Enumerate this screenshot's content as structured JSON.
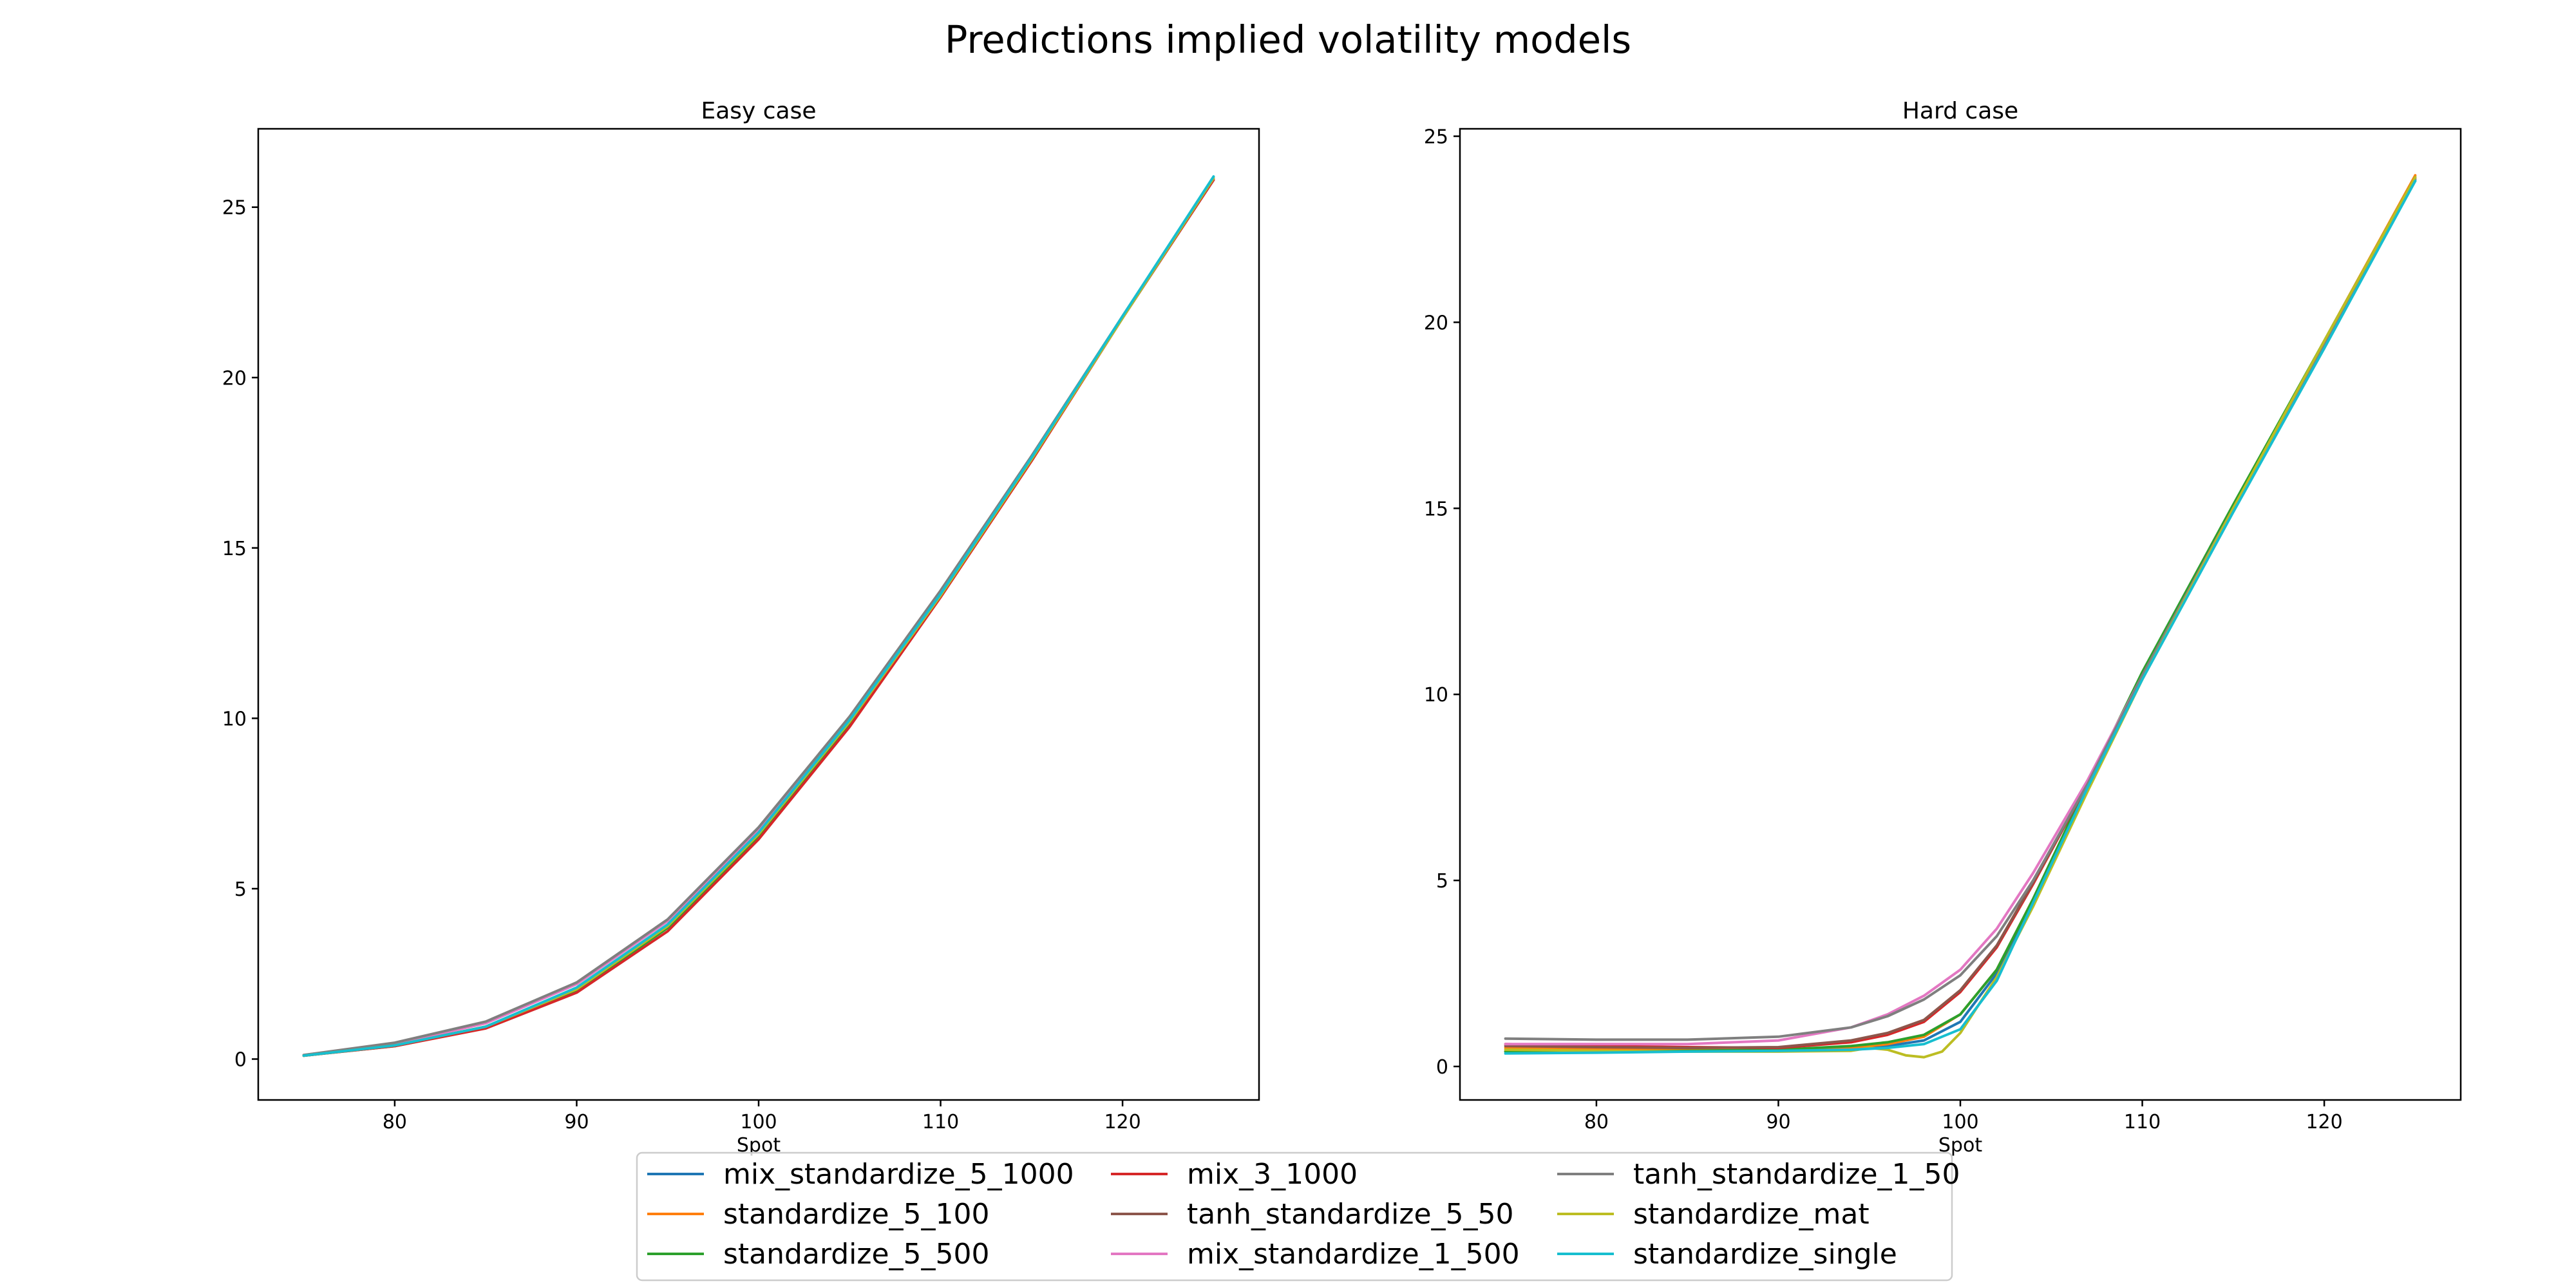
{
  "figure": {
    "suptitle": "Predictions implied volatility models"
  },
  "chart_data": [
    {
      "type": "line",
      "title": "Easy case",
      "xlabel": "Spot",
      "ylabel": "",
      "xlim": [
        72.5,
        127.5
      ],
      "ylim": [
        -1.2,
        27.3
      ],
      "xticks": [
        80,
        90,
        100,
        110,
        120
      ],
      "yticks": [
        0,
        5,
        10,
        15,
        20,
        25
      ],
      "grid": false,
      "series": [
        {
          "name": "mix_standardize_5_1000",
          "color": "#1f77b4",
          "x": [
            75,
            80,
            85,
            90,
            95,
            100,
            105,
            110,
            115,
            120,
            125
          ],
          "y": [
            0.1,
            0.4,
            0.95,
            2.05,
            3.9,
            6.6,
            9.9,
            13.6,
            17.6,
            21.75,
            25.8
          ]
        },
        {
          "name": "standardize_5_100",
          "color": "#ff7f0e",
          "x": [
            75,
            80,
            85,
            90,
            95,
            100,
            105,
            110,
            115,
            120,
            125
          ],
          "y": [
            0.1,
            0.4,
            0.95,
            2.05,
            3.85,
            6.55,
            9.85,
            13.6,
            17.6,
            21.75,
            25.85
          ]
        },
        {
          "name": "standardize_5_500",
          "color": "#2ca02c",
          "x": [
            75,
            80,
            85,
            90,
            95,
            100,
            105,
            110,
            115,
            120,
            125
          ],
          "y": [
            0.1,
            0.38,
            0.92,
            2.0,
            3.85,
            6.55,
            9.85,
            13.6,
            17.6,
            21.75,
            25.85
          ]
        },
        {
          "name": "mix_3_1000",
          "color": "#d62728",
          "x": [
            75,
            80,
            85,
            90,
            95,
            100,
            105,
            110,
            115,
            120,
            125
          ],
          "y": [
            0.1,
            0.38,
            0.9,
            1.95,
            3.75,
            6.45,
            9.75,
            13.55,
            17.55,
            21.75,
            25.8
          ]
        },
        {
          "name": "tanh_standardize_5_50",
          "color": "#8c564b",
          "x": [
            75,
            80,
            85,
            90,
            95,
            100,
            105,
            110,
            115,
            120,
            125
          ],
          "y": [
            0.1,
            0.4,
            0.95,
            2.05,
            3.9,
            6.6,
            9.9,
            13.65,
            17.6,
            21.75,
            25.85
          ]
        },
        {
          "name": "mix_standardize_1_500",
          "color": "#e377c2",
          "x": [
            75,
            80,
            85,
            90,
            95,
            100,
            105,
            110,
            115,
            120,
            125
          ],
          "y": [
            0.12,
            0.45,
            1.05,
            2.2,
            4.05,
            6.75,
            10.0,
            13.7,
            17.65,
            21.8,
            25.85
          ]
        },
        {
          "name": "tanh_standardize_1_50",
          "color": "#7f7f7f",
          "x": [
            75,
            80,
            85,
            90,
            95,
            100,
            105,
            110,
            115,
            120,
            125
          ],
          "y": [
            0.12,
            0.48,
            1.1,
            2.25,
            4.1,
            6.8,
            10.05,
            13.75,
            17.7,
            21.8,
            25.85
          ]
        },
        {
          "name": "standardize_mat",
          "color": "#bcbd22",
          "x": [
            75,
            80,
            85,
            90,
            95,
            100,
            105,
            110,
            115,
            120,
            125
          ],
          "y": [
            0.1,
            0.4,
            0.95,
            2.05,
            3.9,
            6.6,
            9.9,
            13.6,
            17.6,
            21.75,
            25.85
          ]
        },
        {
          "name": "standardize_single",
          "color": "#17becf",
          "x": [
            75,
            80,
            85,
            90,
            95,
            100,
            105,
            110,
            115,
            120,
            125
          ],
          "y": [
            0.1,
            0.4,
            0.95,
            2.1,
            3.95,
            6.65,
            9.95,
            13.65,
            17.65,
            21.8,
            25.9
          ]
        }
      ]
    },
    {
      "type": "line",
      "title": "Hard case",
      "xlabel": "Spot",
      "ylabel": "",
      "xlim": [
        72.5,
        127.5
      ],
      "ylim": [
        -0.9,
        25.2
      ],
      "xticks": [
        80,
        90,
        100,
        110,
        120
      ],
      "yticks": [
        0,
        5,
        10,
        15,
        20,
        25
      ],
      "grid": false,
      "series": [
        {
          "name": "mix_standardize_5_1000",
          "color": "#1f77b4",
          "x": [
            75,
            80,
            85,
            90,
            94,
            96,
            98,
            100,
            102,
            104,
            107,
            110,
            115,
            120,
            125
          ],
          "y": [
            0.4,
            0.42,
            0.43,
            0.45,
            0.5,
            0.55,
            0.7,
            1.2,
            2.5,
            4.5,
            7.6,
            10.5,
            15.0,
            19.4,
            23.8
          ]
        },
        {
          "name": "standardize_5_100",
          "color": "#ff7f0e",
          "x": [
            75,
            80,
            85,
            90,
            94,
            96,
            98,
            100,
            102,
            104,
            107,
            110,
            115,
            120,
            125
          ],
          "y": [
            0.5,
            0.48,
            0.45,
            0.45,
            0.5,
            0.6,
            0.8,
            1.4,
            2.6,
            4.5,
            7.5,
            10.5,
            15.0,
            19.5,
            23.95
          ]
        },
        {
          "name": "standardize_5_500",
          "color": "#2ca02c",
          "x": [
            75,
            80,
            85,
            90,
            94,
            96,
            98,
            100,
            102,
            104,
            107,
            110,
            115,
            120,
            125
          ],
          "y": [
            0.4,
            0.4,
            0.42,
            0.45,
            0.55,
            0.65,
            0.85,
            1.4,
            2.6,
            4.5,
            7.6,
            10.6,
            15.1,
            19.5,
            23.9
          ]
        },
        {
          "name": "mix_3_1000",
          "color": "#d62728",
          "x": [
            75,
            80,
            85,
            90,
            94,
            96,
            98,
            100,
            102,
            104,
            107,
            110,
            115,
            120,
            125
          ],
          "y": [
            0.6,
            0.55,
            0.52,
            0.5,
            0.65,
            0.85,
            1.2,
            2.0,
            3.2,
            4.9,
            7.6,
            10.5,
            15.0,
            19.4,
            23.9
          ]
        },
        {
          "name": "tanh_standardize_5_50",
          "color": "#8c564b",
          "x": [
            75,
            80,
            85,
            90,
            94,
            96,
            98,
            100,
            102,
            104,
            107,
            110,
            115,
            120,
            125
          ],
          "y": [
            0.55,
            0.52,
            0.5,
            0.52,
            0.7,
            0.9,
            1.25,
            2.05,
            3.25,
            4.95,
            7.6,
            10.5,
            15.0,
            19.4,
            23.85
          ]
        },
        {
          "name": "mix_standardize_1_500",
          "color": "#e377c2",
          "x": [
            75,
            80,
            85,
            90,
            94,
            96,
            98,
            100,
            102,
            104,
            107,
            110,
            115,
            120,
            125
          ],
          "y": [
            0.6,
            0.6,
            0.6,
            0.7,
            1.05,
            1.4,
            1.9,
            2.6,
            3.7,
            5.2,
            7.7,
            10.5,
            15.0,
            19.4,
            23.85
          ]
        },
        {
          "name": "tanh_standardize_1_50",
          "color": "#7f7f7f",
          "x": [
            75,
            80,
            85,
            90,
            94,
            96,
            98,
            100,
            102,
            104,
            107,
            110,
            115,
            120,
            125
          ],
          "y": [
            0.75,
            0.72,
            0.72,
            0.8,
            1.05,
            1.35,
            1.8,
            2.45,
            3.5,
            5.0,
            7.6,
            10.5,
            15.0,
            19.4,
            23.85
          ]
        },
        {
          "name": "standardize_mat",
          "color": "#bcbd22",
          "x": [
            75,
            80,
            85,
            90,
            94,
            95,
            96,
            97,
            98,
            99,
            100,
            102,
            104,
            107,
            110,
            115,
            120,
            125
          ],
          "y": [
            0.45,
            0.42,
            0.4,
            0.4,
            0.42,
            0.5,
            0.45,
            0.3,
            0.25,
            0.4,
            0.9,
            2.4,
            4.3,
            7.4,
            10.4,
            15.0,
            19.5,
            23.9
          ]
        },
        {
          "name": "standardize_single",
          "color": "#17becf",
          "x": [
            75,
            80,
            85,
            90,
            94,
            96,
            98,
            100,
            102,
            104,
            107,
            110,
            115,
            120,
            125
          ],
          "y": [
            0.35,
            0.37,
            0.4,
            0.42,
            0.45,
            0.5,
            0.6,
            1.0,
            2.3,
            4.4,
            7.5,
            10.4,
            14.9,
            19.3,
            23.8
          ]
        }
      ]
    }
  ],
  "legend": {
    "placement": "bottom-center",
    "columns": 3,
    "items": [
      "mix_standardize_5_1000",
      "standardize_5_100",
      "standardize_5_500",
      "mix_3_1000",
      "tanh_standardize_5_50",
      "mix_standardize_1_500",
      "tanh_standardize_1_50",
      "standardize_mat",
      "standardize_single"
    ]
  }
}
